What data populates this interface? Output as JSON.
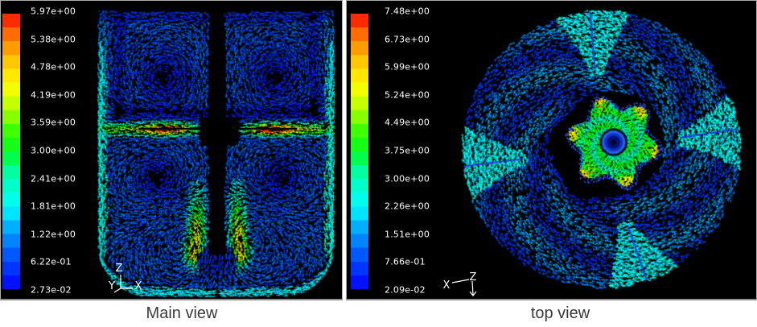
{
  "figure": {
    "background": "#ffffff",
    "panel_background": "#000000"
  },
  "colors": {
    "caption_text": "#3a3a3a",
    "colorbar_label_text": "#ffffff",
    "axis_line": "#ffffff",
    "baffle_line_blue": "#1d3fd4",
    "colormap_stops": [
      [
        0.0,
        "#0000ff"
      ],
      [
        0.12,
        "#0055ff"
      ],
      [
        0.22,
        "#00aaff"
      ],
      [
        0.3,
        "#00ffff"
      ],
      [
        0.42,
        "#00ffaa"
      ],
      [
        0.5,
        "#00ff22"
      ],
      [
        0.58,
        "#44ff00"
      ],
      [
        0.66,
        "#bbff00"
      ],
      [
        0.74,
        "#ffff00"
      ],
      [
        0.82,
        "#ffcc00"
      ],
      [
        0.9,
        "#ff8800"
      ],
      [
        0.96,
        "#ff4400"
      ],
      [
        1.0,
        "#ff0000"
      ]
    ]
  },
  "panels": {
    "main": {
      "caption": "Main view",
      "colorbar_labels": [
        "5.97e+00",
        "5.38e+00",
        "4.78e+00",
        "4.19e+00",
        "3.59e+00",
        "3.00e+00",
        "2.41e+00",
        "1.81e+00",
        "1.22e+00",
        "6.22e-01",
        "2.73e-02"
      ],
      "axes": {
        "z": "Z",
        "x": "X",
        "y": "Y"
      }
    },
    "top": {
      "caption": "top view",
      "colorbar_labels": [
        "7.48e+00",
        "6.73e+00",
        "5.99e+00",
        "5.24e+00",
        "4.49e+00",
        "3.75e+00",
        "3.00e+00",
        "2.26e+00",
        "1.51e+00",
        "7.66e-01",
        "2.09e-02"
      ],
      "axes": {
        "x": "X",
        "z": "Z"
      }
    }
  },
  "chart_data": [
    {
      "type": "vector-field",
      "title": "Main view",
      "description": "Side-section velocity vectors of a stirred tank, colored by magnitude (rainbow colormap); radial impeller jet at mid-height, bright wall layers, two downward plumes below the impeller",
      "colorbar_tick_labels": [
        "5.97e+00",
        "5.38e+00",
        "4.78e+00",
        "4.19e+00",
        "3.59e+00",
        "3.00e+00",
        "2.41e+00",
        "1.81e+00",
        "1.22e+00",
        "6.22e-01",
        "2.73e-02"
      ],
      "colorbar_tick_values": [
        5.97,
        5.38,
        4.78,
        4.19,
        3.59,
        3.0,
        2.41,
        1.81,
        1.22,
        0.622,
        0.0273
      ],
      "range": [
        0.0273,
        5.97
      ],
      "colormap": "rainbow blue-cyan-green-yellow-orange-red",
      "legend_position": "left"
    },
    {
      "type": "vector-field",
      "title": "top view",
      "description": "Top-view velocity vectors of the stirred tank, colored by magnitude; swirling cyan outer field with four bright baffle plumes and a green/yellow lobed impeller region with a dark blue central vortex",
      "colorbar_tick_labels": [
        "7.48e+00",
        "6.73e+00",
        "5.99e+00",
        "5.24e+00",
        "4.49e+00",
        "3.75e+00",
        "3.00e+00",
        "2.26e+00",
        "1.51e+00",
        "7.66e-01",
        "2.09e-02"
      ],
      "colorbar_tick_values": [
        7.48,
        6.73,
        5.99,
        5.24,
        4.49,
        3.75,
        3.0,
        2.26,
        1.51,
        0.766,
        0.0209
      ],
      "range": [
        0.0209,
        7.48
      ],
      "colormap": "rainbow blue-cyan-green-yellow-orange-red",
      "legend_position": "left"
    }
  ]
}
